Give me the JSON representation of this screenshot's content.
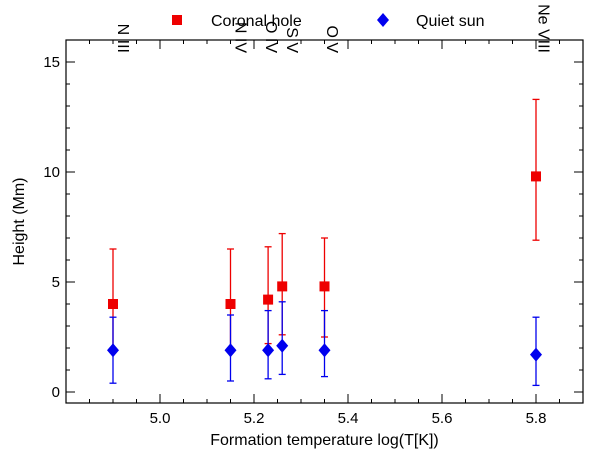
{
  "chart_data": {
    "type": "scatter",
    "xlabel": "Formation temperature log(T[K])",
    "ylabel": "Height (Mm)",
    "xlim": [
      4.8,
      5.9
    ],
    "ylim": [
      -0.5,
      16
    ],
    "xticks": [
      "5.0",
      "5.2",
      "5.4",
      "5.6",
      "5.8"
    ],
    "xtick_values": [
      5.0,
      5.2,
      5.4,
      5.6,
      5.8
    ],
    "yticks": [
      "0",
      "5",
      "10",
      "15"
    ],
    "ytick_values": [
      0,
      5,
      10,
      15
    ],
    "grid": false,
    "legend_position": "top",
    "series": [
      {
        "name": "Coronal hole",
        "color": "#ee0000",
        "marker": "square",
        "x": [
          4.9,
          5.15,
          5.23,
          5.26,
          5.35,
          5.8
        ],
        "y": [
          4.0,
          4.0,
          4.2,
          4.8,
          4.8,
          9.8
        ],
        "err_low": [
          1.9,
          1.9,
          2.2,
          2.6,
          2.5,
          6.9
        ],
        "err_high": [
          6.5,
          6.5,
          6.6,
          7.2,
          7.0,
          13.3
        ]
      },
      {
        "name": "Quiet sun",
        "color": "#0000ee",
        "marker": "diamond",
        "x": [
          4.9,
          5.15,
          5.23,
          5.26,
          5.35,
          5.8
        ],
        "y": [
          1.9,
          1.9,
          1.9,
          2.1,
          1.9,
          1.7
        ],
        "err_low": [
          0.4,
          0.5,
          0.6,
          0.8,
          0.7,
          0.3
        ],
        "err_high": [
          3.4,
          3.5,
          3.7,
          4.1,
          3.7,
          3.4
        ]
      }
    ],
    "annotations": [
      {
        "text": "N III",
        "x": 4.9
      },
      {
        "text": "N IV",
        "x": 5.15
      },
      {
        "text": "O IV",
        "x": 5.215
      },
      {
        "text": "S V",
        "x": 5.26
      },
      {
        "text": "O V",
        "x": 5.345
      },
      {
        "text": "Ne VIII",
        "x": 5.795
      }
    ]
  }
}
